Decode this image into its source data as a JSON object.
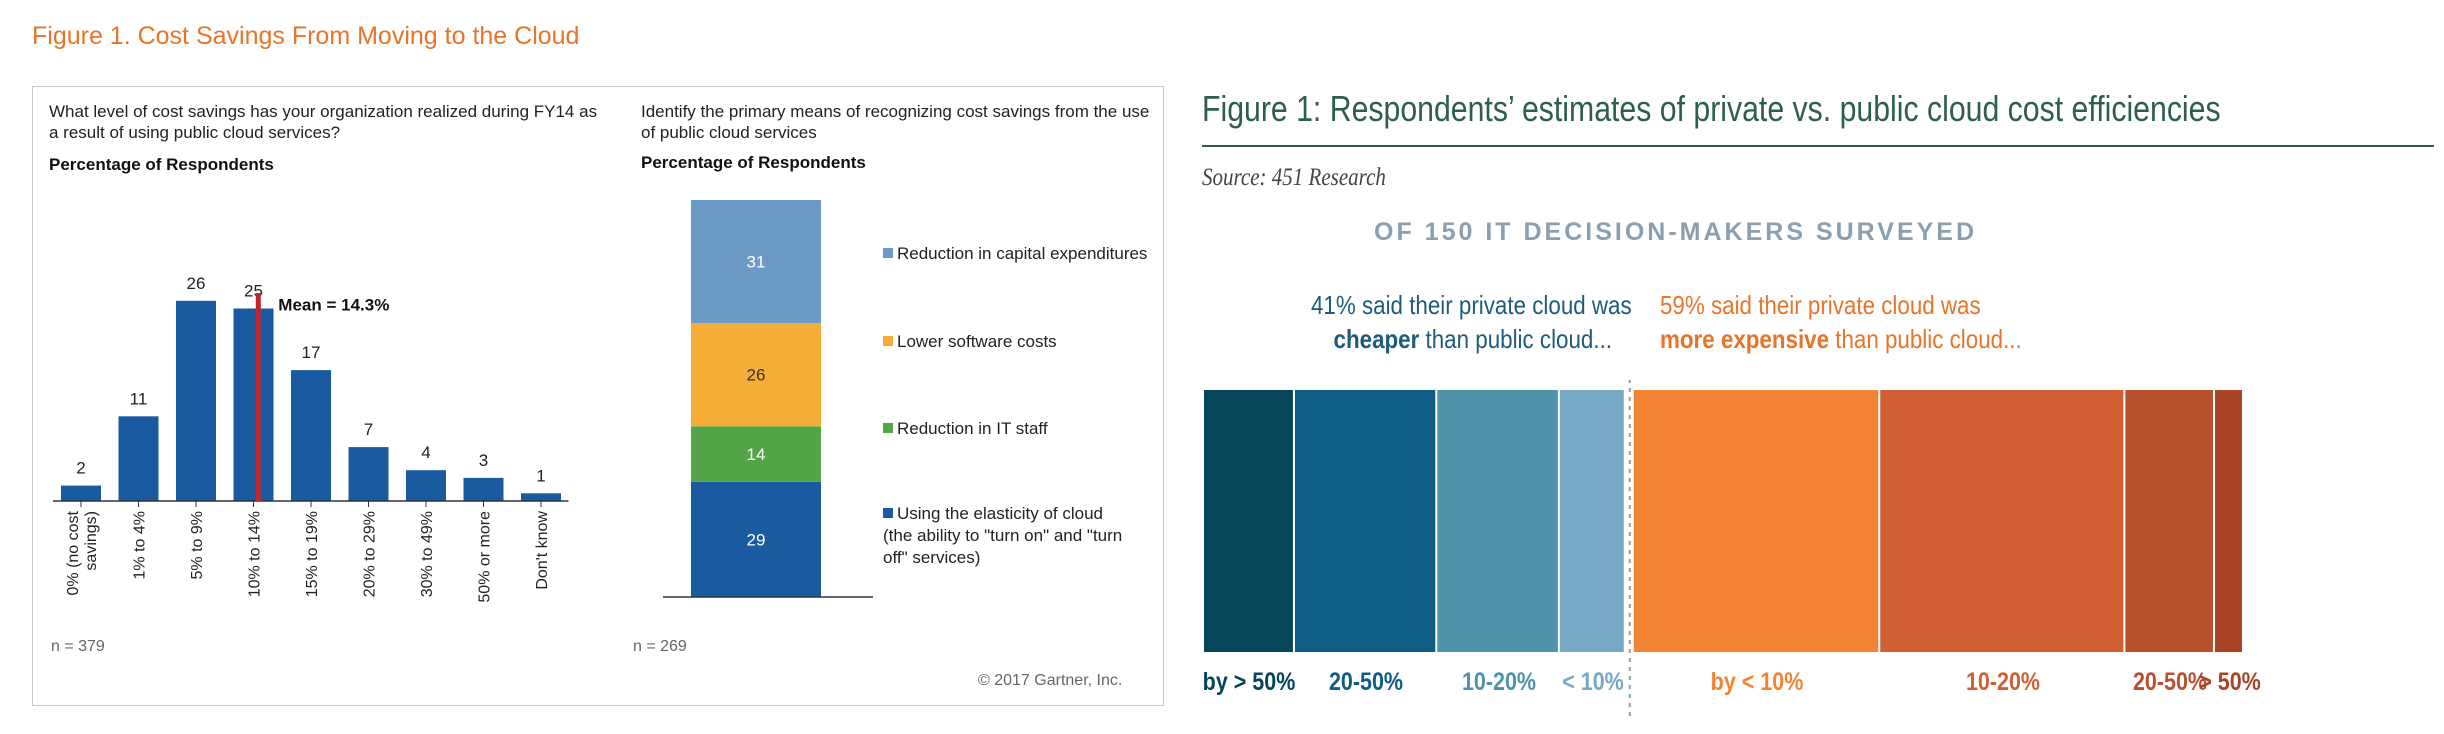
{
  "left_figure_title": "Figure 1. Cost Savings From Moving to the Cloud",
  "colors": {
    "gartner_blue": "#1a5aa0",
    "mean_line": "#c0262c",
    "stack_capital": "#6c9ac7",
    "stack_software": "#f6ae38",
    "stack_staff": "#52a447",
    "stack_elasticity": "#1a5aa0",
    "teal_dark": "#06465a",
    "teal_mid": "#0f5d85",
    "teal_light": "#4f93aa",
    "teal_pale": "#75a9c6",
    "orange_1": "#f28433",
    "orange_2": "#d25f34",
    "orange_3": "#b8502c",
    "orange_4": "#a84326"
  },
  "chart_data": [
    {
      "type": "bar",
      "question": "What level of cost savings has your organization realized during FY14 as a result of using public cloud services?",
      "ylabel": "Percentage of Respondents",
      "categories": [
        "0% (no cost savings)",
        "1% to 4%",
        "5% to 9%",
        "10% to 14%",
        "15% to 19%",
        "20% to 29%",
        "30% to 49%",
        "50% or more",
        "Don't know"
      ],
      "values": [
        2,
        11,
        26,
        25,
        17,
        7,
        4,
        3,
        1
      ],
      "mean_label": "Mean = 14.3%",
      "mean_value": 14.3,
      "n": "n = 379"
    },
    {
      "type": "bar",
      "subtype": "stacked",
      "question": "Identify the primary means of recognizing cost savings from the use of public cloud services",
      "ylabel": "Percentage of Respondents",
      "series": [
        {
          "name": "Using the elasticity of cloud (the ability to \"turn on\" and \"turn off\" services)",
          "value": 29
        },
        {
          "name": "Reduction in IT staff",
          "value": 14
        },
        {
          "name": "Lower software costs",
          "value": 26
        },
        {
          "name": "Reduction in capital expenditures",
          "value": 31
        }
      ],
      "n": "n = 269",
      "copyright": "© 2017 Gartner, Inc."
    },
    {
      "type": "bar",
      "subtype": "stacked-horizontal",
      "title": "Figure 1: Respondents’ estimates of private vs. public cloud cost efficiencies",
      "source": "Source: 451 Research",
      "headline": "OF 150 IT DECISION-MAKERS SURVEYED",
      "left_statement_line1": "41% said their private cloud was",
      "left_statement_bold": "cheaper",
      "left_statement_line2_rest": " than public cloud...",
      "right_statement_line1": "59% said their private cloud was",
      "right_statement_bold": "more expensive",
      "right_statement_line2_rest": " than public cloud...",
      "cheaper_total": 41,
      "expensive_total": 59,
      "segments": [
        {
          "label": "by > 50%",
          "group": "cheaper",
          "width": 6.9
        },
        {
          "label": "20-50%",
          "group": "cheaper",
          "width": 10.8
        },
        {
          "label": "10-20%",
          "group": "cheaper",
          "width": 9.3
        },
        {
          "label": "< 10%",
          "group": "cheaper",
          "width": 5.0
        },
        {
          "label": "by < 10%",
          "group": "expensive",
          "width": 18.7
        },
        {
          "label": "10-20%",
          "group": "expensive",
          "width": 18.6
        },
        {
          "label": "20-50%",
          "group": "expensive",
          "width": 6.8
        },
        {
          "label": "> 50%",
          "group": "expensive",
          "width": 2.2
        }
      ]
    }
  ]
}
